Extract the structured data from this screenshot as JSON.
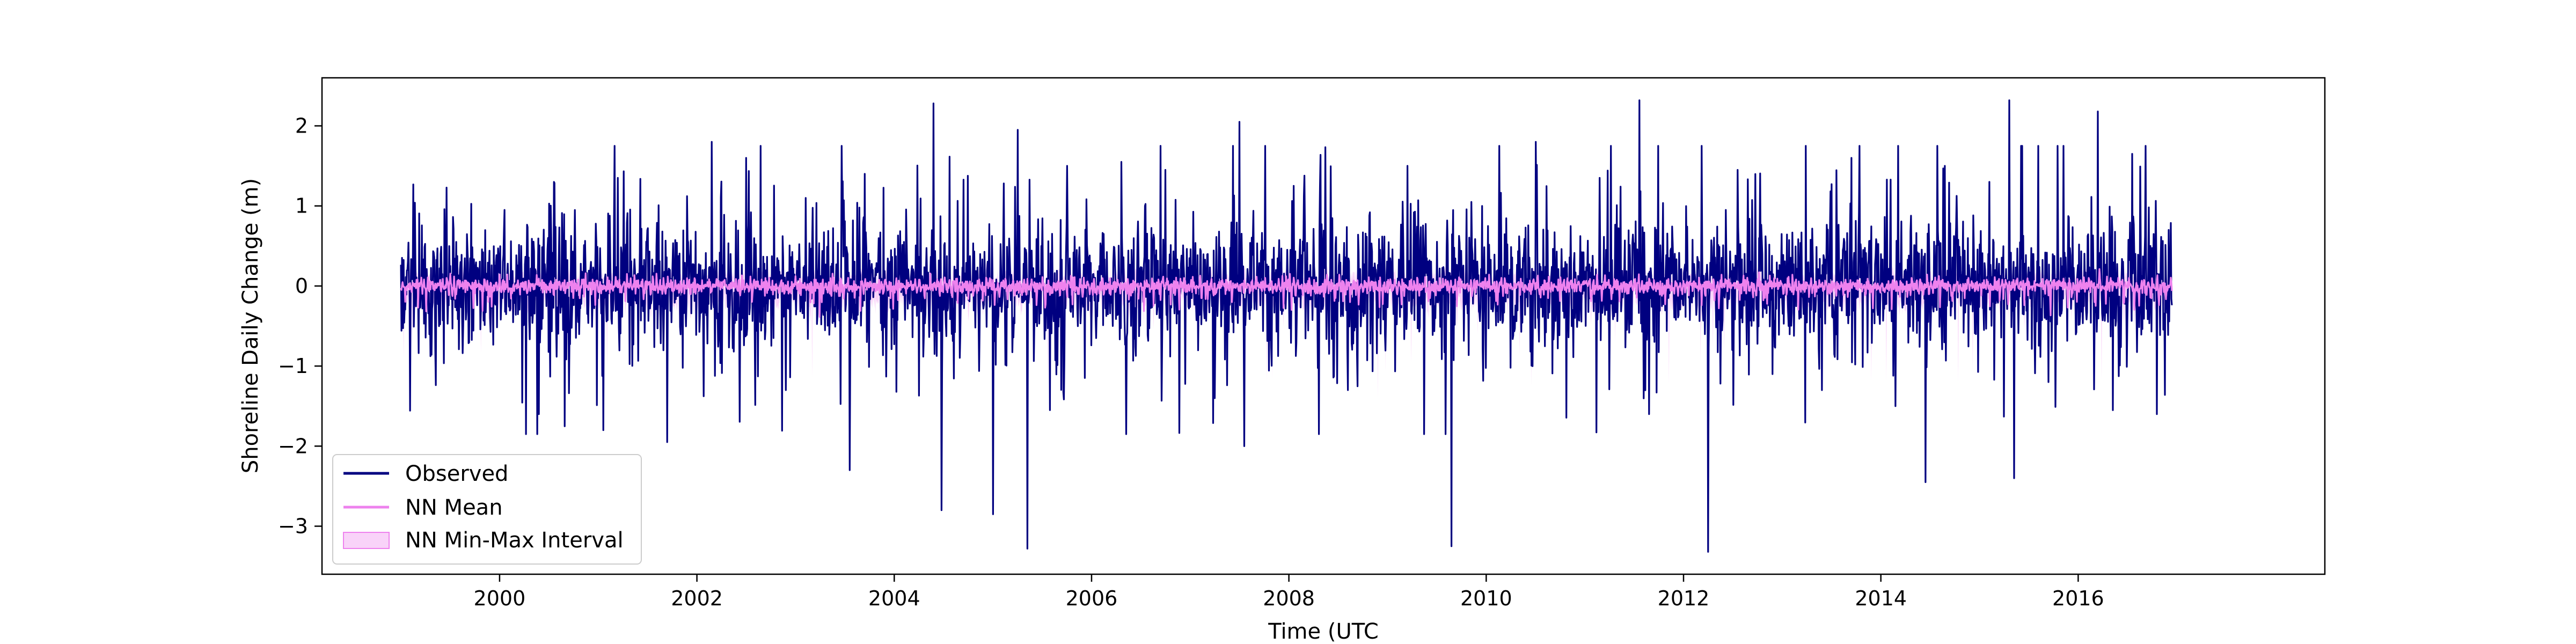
{
  "chart_data": {
    "type": "line",
    "title": "",
    "xlabel": "Time (UTC",
    "ylabel": "Shoreline Daily Change (m)",
    "xlim": [
      1998.2,
      2018.5
    ],
    "ylim": [
      -3.6,
      2.6
    ],
    "x_ticks": [
      2000,
      2002,
      2004,
      2006,
      2008,
      2010,
      2012,
      2014,
      2016
    ],
    "x_tick_labels": [
      "2000",
      "2002",
      "2004",
      "2006",
      "2008",
      "2010",
      "2012",
      "2014",
      "2016"
    ],
    "y_ticks": [
      2,
      1,
      0,
      -1,
      -2,
      -3
    ],
    "y_tick_labels": [
      "2",
      "1",
      "0",
      "−1",
      "−2",
      "−3"
    ],
    "grid": false,
    "legend_position": "bottom-left",
    "date_range": [
      "1999-01",
      "2016-12"
    ],
    "series": [
      {
        "name": "Observed",
        "kind": "line",
        "color": "#000080",
        "approx_range": [
          -3.3,
          2.3
        ]
      },
      {
        "name": "NN Mean",
        "kind": "line",
        "color": "#ee82ee",
        "approx_range": [
          -0.6,
          0.35
        ]
      },
      {
        "name": "NN Min-Max Interval",
        "kind": "band",
        "color": "#ee82ee",
        "approx_range": [
          -1.4,
          0.5
        ]
      }
    ],
    "observed_spikes": [
      {
        "x": 2000.05,
        "y": 0.95
      },
      {
        "x": 2000.4,
        "y": -1.6
      },
      {
        "x": 2000.55,
        "y": 1.3
      },
      {
        "x": 2001.05,
        "y": -1.8
      },
      {
        "x": 2001.2,
        "y": 1.35
      },
      {
        "x": 2001.7,
        "y": -1.95
      },
      {
        "x": 2002.15,
        "y": 1.8
      },
      {
        "x": 2002.5,
        "y": 1.6
      },
      {
        "x": 2002.9,
        "y": -1.3
      },
      {
        "x": 2003.1,
        "y": 1.1
      },
      {
        "x": 2003.55,
        "y": -2.3
      },
      {
        "x": 2003.7,
        "y": 1.4
      },
      {
        "x": 2004.4,
        "y": 2.28
      },
      {
        "x": 2004.48,
        "y": -2.8
      },
      {
        "x": 2005.0,
        "y": -2.85
      },
      {
        "x": 2005.25,
        "y": 1.95
      },
      {
        "x": 2005.35,
        "y": -3.28
      },
      {
        "x": 2005.75,
        "y": 1.5
      },
      {
        "x": 2006.3,
        "y": 1.55
      },
      {
        "x": 2006.75,
        "y": 1.45
      },
      {
        "x": 2007.25,
        "y": -1.4
      },
      {
        "x": 2007.5,
        "y": 2.05
      },
      {
        "x": 2007.55,
        "y": -2.0
      },
      {
        "x": 2008.05,
        "y": 1.25
      },
      {
        "x": 2008.6,
        "y": -1.3
      },
      {
        "x": 2009.2,
        "y": 1.5
      },
      {
        "x": 2009.65,
        "y": -3.25
      },
      {
        "x": 2009.85,
        "y": 1.05
      },
      {
        "x": 2010.5,
        "y": 1.8
      },
      {
        "x": 2011.15,
        "y": 1.35
      },
      {
        "x": 2011.55,
        "y": 2.32
      },
      {
        "x": 2011.65,
        "y": -1.6
      },
      {
        "x": 2012.25,
        "y": -3.32
      },
      {
        "x": 2012.55,
        "y": 1.45
      },
      {
        "x": 2012.9,
        "y": -1.1
      },
      {
        "x": 2013.4,
        "y": -1.3
      },
      {
        "x": 2013.7,
        "y": 1.6
      },
      {
        "x": 2014.15,
        "y": -1.5
      },
      {
        "x": 2014.45,
        "y": -2.45
      },
      {
        "x": 2014.65,
        "y": 1.5
      },
      {
        "x": 2015.1,
        "y": 1.3
      },
      {
        "x": 2015.3,
        "y": 2.32
      },
      {
        "x": 2015.35,
        "y": -2.4
      },
      {
        "x": 2015.7,
        "y": -1.2
      },
      {
        "x": 2015.85,
        "y": 1.75
      },
      {
        "x": 2016.2,
        "y": 2.18
      },
      {
        "x": 2016.35,
        "y": -1.55
      },
      {
        "x": 2016.55,
        "y": 1.65
      },
      {
        "x": 2016.8,
        "y": -1.6
      },
      {
        "x": 2016.92,
        "y": 0.7
      }
    ]
  }
}
